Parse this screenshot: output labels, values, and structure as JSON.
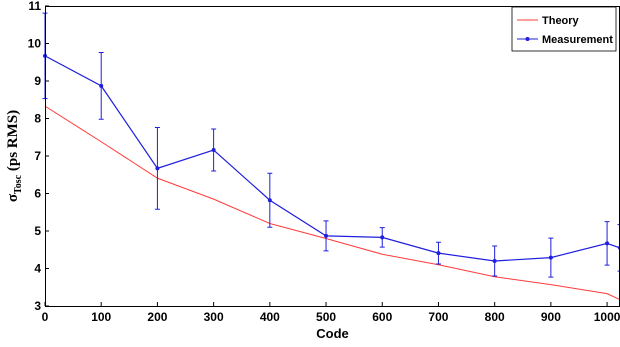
{
  "chart_data": {
    "type": "line",
    "xlabel": "Code",
    "ylabel": {
      "prefix": "σ",
      "subscript": "Tosc",
      "suffix": " (ps RMS)"
    },
    "xlim": [
      0,
      1023
    ],
    "ylim": [
      3,
      11
    ],
    "x_ticks": [
      0,
      100,
      200,
      300,
      400,
      500,
      600,
      700,
      800,
      900,
      1000
    ],
    "y_ticks": [
      3,
      4,
      5,
      6,
      7,
      8,
      9,
      10,
      11
    ],
    "grid": false,
    "legend_position": "top-right",
    "series": [
      {
        "name": "Theory",
        "color": "#ff3b3b",
        "marker": "none",
        "x": [
          0,
          100,
          200,
          300,
          400,
          500,
          600,
          700,
          800,
          900,
          1000,
          1023
        ],
        "y": [
          8.33,
          7.38,
          6.41,
          5.85,
          5.2,
          4.8,
          4.38,
          4.1,
          3.78,
          3.57,
          3.33,
          3.17
        ]
      },
      {
        "name": "Measurement",
        "color": "#1f1fdd",
        "marker": "dot",
        "x": [
          0,
          100,
          200,
          300,
          400,
          500,
          600,
          700,
          800,
          900,
          1000,
          1023
        ],
        "y": [
          9.67,
          8.87,
          6.67,
          7.16,
          5.82,
          4.87,
          4.83,
          4.41,
          4.2,
          4.29,
          4.67,
          4.55
        ],
        "error_low": [
          1.14,
          0.89,
          1.09,
          0.56,
          0.72,
          0.4,
          0.26,
          0.29,
          0.4,
          0.52,
          0.58,
          0.62
        ],
        "error_high": [
          1.14,
          0.89,
          1.09,
          0.56,
          0.72,
          0.4,
          0.26,
          0.29,
          0.4,
          0.52,
          0.58,
          0.62
        ]
      }
    ]
  }
}
